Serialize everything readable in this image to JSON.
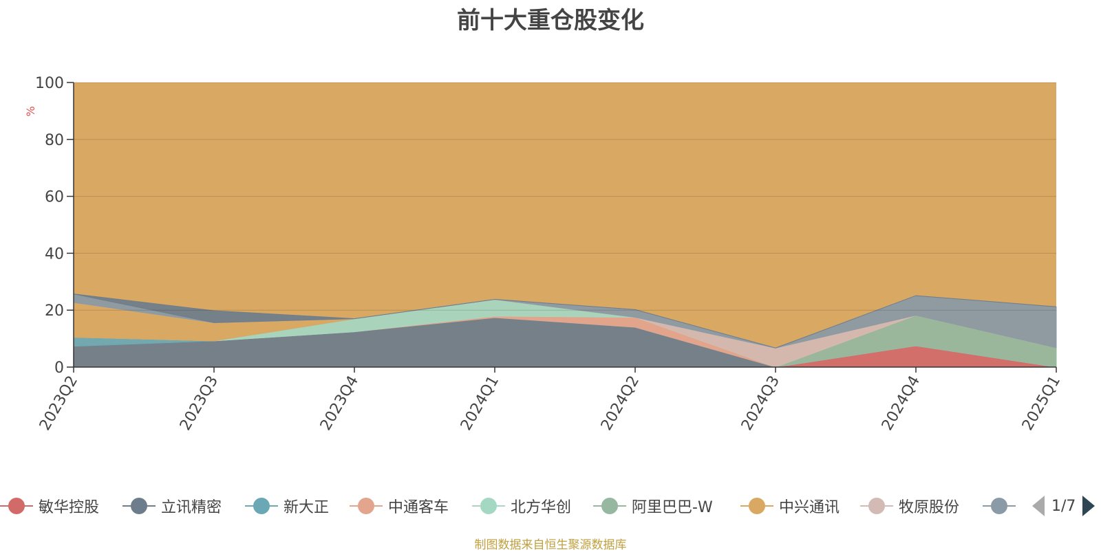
{
  "chart_data": {
    "type": "area",
    "title": "前十大重仓股变化",
    "ylabel": "%",
    "ylim": [
      0,
      100
    ],
    "yticks": [
      0,
      20,
      40,
      60,
      80,
      100
    ],
    "grid": true,
    "stacked": true,
    "legend_position": "bottom",
    "categories": [
      "2023Q2",
      "2023Q3",
      "2023Q4",
      "2024Q1",
      "2024Q2",
      "2024Q3",
      "2024Q4",
      "2025Q1"
    ],
    "series": [
      {
        "name": "敏华控股",
        "color": "#d36a6a",
        "values": [
          0,
          0,
          0,
          0,
          0,
          0,
          7.5,
          0
        ]
      },
      {
        "name": "立讯精密",
        "color": "#6e7d8b",
        "values": [
          7.3,
          9.2,
          12.4,
          17.4,
          14.0,
          0,
          0,
          0
        ]
      },
      {
        "name": "新大正",
        "color": "#6ba8b5",
        "values": [
          3.2,
          0,
          0,
          0,
          0,
          0,
          0,
          0
        ]
      },
      {
        "name": "中通客车",
        "color": "#e3a58e",
        "values": [
          0,
          0,
          0,
          0.5,
          3.5,
          0,
          0,
          0
        ]
      },
      {
        "name": "北方华创",
        "color": "#a5d8c2",
        "values": [
          0,
          0,
          4.6,
          5.9,
          0,
          0,
          0,
          0
        ]
      },
      {
        "name": "阿里巴巴-W",
        "color": "#96b8a0",
        "values": [
          0,
          0,
          0,
          0,
          0,
          0,
          10.7,
          6.8
        ]
      },
      {
        "name": "中兴通讯",
        "color": "#d9a862",
        "values": [
          12.2,
          6.4,
          0,
          0,
          0,
          0,
          0,
          0
        ]
      },
      {
        "name": "牧原股份",
        "color": "#d4bab4",
        "values": [
          0,
          0,
          0,
          0,
          0,
          6.7,
          0,
          0
        ]
      },
      {
        "name": "",
        "color": "#8a9aa6",
        "values": [
          3.0,
          0,
          0,
          0,
          2.7,
          0,
          6.9,
          14.4
        ]
      },
      {
        "name": "",
        "color": "#6e7d8b",
        "values": [
          0,
          4.2,
          0,
          0,
          0,
          0,
          0,
          0
        ]
      }
    ]
  },
  "legend_page": "1/7",
  "source": "制图数据来自恒生聚源数据库"
}
